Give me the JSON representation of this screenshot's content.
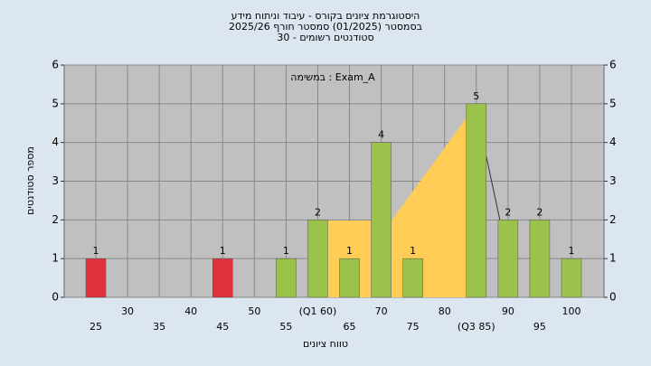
{
  "chart_data": {
    "type": "bar",
    "title": [
      "היסטוגרמת ציונים בקורס - עיבוד וניתוח מידע",
      "בסמסטר  (01/2025)  סמסטר חורף 2025/26",
      "סטודנטים רשומים - 30"
    ],
    "annotation": "במשימה : Exam_A",
    "y_label": "מספר סטודנטים",
    "x_label": "טווח ציונים",
    "categories": [
      "25",
      "30",
      "35",
      "40",
      "45",
      "50",
      "55",
      "(Q1 60)",
      "65",
      "70",
      "75",
      "80",
      "(Q3 85)",
      "90",
      "95",
      "100"
    ],
    "values": [
      1,
      0,
      0,
      0,
      1,
      0,
      1,
      2,
      1,
      4,
      1,
      0,
      5,
      2,
      2,
      1
    ],
    "colors": [
      "#e0323c",
      "#9bc24a",
      "#9bc24a",
      "#9bc24a",
      "#e0323c",
      "#9bc24a",
      "#9bc24a",
      "#9bc24a",
      "#9bc24a",
      "#9bc24a",
      "#9bc24a",
      "#9bc24a",
      "#9bc24a",
      "#9bc24a",
      "#9bc24a",
      "#9bc24a"
    ],
    "ylim": [
      0,
      6
    ],
    "yticks": [
      0,
      1,
      2,
      3,
      4,
      5,
      6
    ],
    "y2lim": [
      0,
      6
    ],
    "y2ticks": [
      0,
      1,
      2,
      3,
      4,
      5,
      6
    ],
    "grid": true
  }
}
